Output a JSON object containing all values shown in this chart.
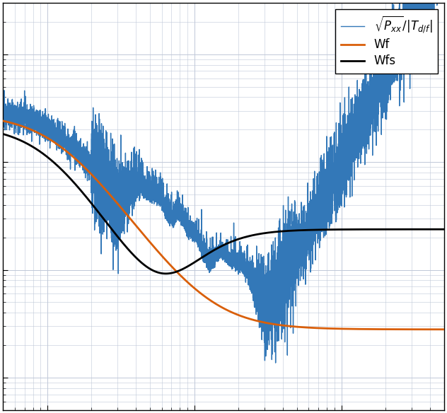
{
  "title": "",
  "xlabel": "",
  "ylabel": "",
  "xlim": [
    0.5,
    500
  ],
  "ylim": [
    0.0005,
    3.0
  ],
  "background_color": "#ffffff",
  "grid_color": "#c0c8d8",
  "blue_color": "#3378b8",
  "orange_color": "#d95f0a",
  "black_color": "#000000",
  "legend_labels": [
    "$\\sqrt{P_{xx}}/|T_{d/f}|$",
    "Wf",
    "Wfs"
  ],
  "blue_lw": 1.0,
  "orange_lw": 2.0,
  "black_lw": 2.0,
  "legend_fontsize": 12,
  "figsize": [
    6.32,
    5.84
  ],
  "dpi": 100
}
